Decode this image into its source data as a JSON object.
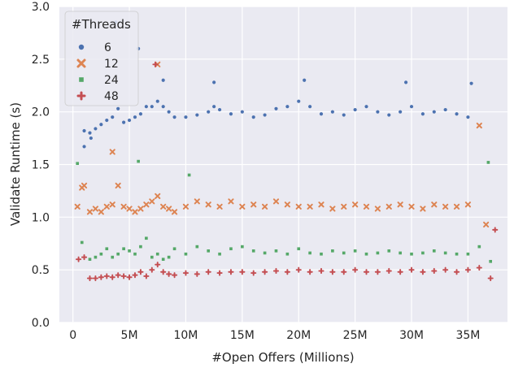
{
  "chart_data": {
    "type": "scatter",
    "xlabel": "#Open Offers (Millions)",
    "ylabel": "Validate Runtime (s)",
    "xlim": [
      -1.2,
      38.5
    ],
    "ylim": [
      0.0,
      3.0
    ],
    "x_ticks": [
      0,
      5,
      10,
      15,
      20,
      25,
      30,
      35
    ],
    "x_tick_labels": [
      "0",
      "5M",
      "10M",
      "15M",
      "20M",
      "25M",
      "30M",
      "35M"
    ],
    "y_ticks": [
      0.0,
      0.5,
      1.0,
      1.5,
      2.0,
      2.5,
      3.0
    ],
    "y_tick_labels": [
      "0.0",
      "0.5",
      "1.0",
      "1.5",
      "2.0",
      "2.5",
      "3.0"
    ],
    "grid": true,
    "legend_title": "#Threads",
    "legend_position": "top-left",
    "series": [
      {
        "name": "6",
        "marker": "circle",
        "color": "#4c72b0",
        "x": [
          1.0,
          1.5,
          2.0,
          2.5,
          3.0,
          3.5,
          4.0,
          4.5,
          5.0,
          5.5,
          6.0,
          6.5,
          7.0,
          7.5,
          8.0,
          8.5,
          9.0,
          10.0,
          11.0,
          12.0,
          12.5,
          13.0,
          14.0,
          15.0,
          16.0,
          17.0,
          18.0,
          19.0,
          20.0,
          21.0,
          22.0,
          23.0,
          24.0,
          25.0,
          26.0,
          27.0,
          28.0,
          29.0,
          30.0,
          31.0,
          32.0,
          33.0,
          34.0,
          35.0,
          3.8,
          5.8,
          8.0,
          12.5,
          20.5,
          29.5,
          35.3,
          1.0,
          1.6
        ],
        "y": [
          1.82,
          1.8,
          1.84,
          1.88,
          1.92,
          1.95,
          2.03,
          1.9,
          1.92,
          1.95,
          1.98,
          2.05,
          2.05,
          2.1,
          2.05,
          2.0,
          1.95,
          1.95,
          1.97,
          2.0,
          2.05,
          2.02,
          1.98,
          2.0,
          1.95,
          1.97,
          2.03,
          2.05,
          2.1,
          2.05,
          1.98,
          2.0,
          1.97,
          2.02,
          2.05,
          2.0,
          1.97,
          2.0,
          2.05,
          1.98,
          2.0,
          2.02,
          1.98,
          1.95,
          2.85,
          2.6,
          2.3,
          2.28,
          2.3,
          2.28,
          2.27,
          1.67,
          1.75
        ]
      },
      {
        "name": "12",
        "marker": "x",
        "color": "#dd8452",
        "x": [
          0.8,
          1.5,
          2.0,
          2.5,
          3.0,
          3.5,
          4.0,
          4.5,
          5.0,
          5.5,
          6.0,
          6.5,
          7.0,
          7.5,
          8.0,
          8.5,
          9.0,
          10.0,
          11.0,
          12.0,
          13.0,
          14.0,
          15.0,
          16.0,
          17.0,
          18.0,
          19.0,
          20.0,
          21.0,
          22.0,
          23.0,
          24.0,
          25.0,
          26.0,
          27.0,
          28.0,
          29.0,
          30.0,
          31.0,
          32.0,
          33.0,
          34.0,
          35.0,
          0.4,
          1.0,
          3.5,
          7.5,
          36.0,
          36.6
        ],
        "y": [
          1.28,
          1.05,
          1.08,
          1.05,
          1.1,
          1.12,
          1.3,
          1.1,
          1.08,
          1.05,
          1.08,
          1.12,
          1.15,
          1.2,
          1.1,
          1.08,
          1.05,
          1.1,
          1.15,
          1.12,
          1.1,
          1.15,
          1.1,
          1.12,
          1.1,
          1.15,
          1.12,
          1.1,
          1.1,
          1.12,
          1.08,
          1.1,
          1.12,
          1.1,
          1.08,
          1.1,
          1.12,
          1.1,
          1.08,
          1.12,
          1.1,
          1.1,
          1.12,
          1.1,
          1.3,
          1.62,
          2.45,
          1.87,
          0.93
        ]
      },
      {
        "name": "24",
        "marker": "square",
        "color": "#55a868",
        "x": [
          0.4,
          0.8,
          1.5,
          2.0,
          2.5,
          3.0,
          3.5,
          4.0,
          4.5,
          5.0,
          5.5,
          6.0,
          6.5,
          7.0,
          7.5,
          8.0,
          8.5,
          9.0,
          10.0,
          11.0,
          12.0,
          13.0,
          14.0,
          15.0,
          16.0,
          17.0,
          18.0,
          19.0,
          20.0,
          21.0,
          22.0,
          23.0,
          24.0,
          25.0,
          26.0,
          27.0,
          28.0,
          29.0,
          30.0,
          31.0,
          32.0,
          33.0,
          34.0,
          35.0,
          36.0,
          5.8,
          10.3,
          36.8,
          37.0
        ],
        "y": [
          1.51,
          0.76,
          0.6,
          0.62,
          0.65,
          0.7,
          0.62,
          0.65,
          0.7,
          0.68,
          0.65,
          0.72,
          0.8,
          0.62,
          0.65,
          0.6,
          0.62,
          0.7,
          0.65,
          0.72,
          0.68,
          0.65,
          0.7,
          0.72,
          0.68,
          0.66,
          0.68,
          0.65,
          0.7,
          0.66,
          0.65,
          0.68,
          0.66,
          0.68,
          0.65,
          0.66,
          0.68,
          0.66,
          0.65,
          0.66,
          0.68,
          0.66,
          0.65,
          0.65,
          0.72,
          1.53,
          1.4,
          1.52,
          0.58
        ]
      },
      {
        "name": "48",
        "marker": "plus",
        "color": "#c44e52",
        "x": [
          0.5,
          1.0,
          1.5,
          2.0,
          2.5,
          3.0,
          3.5,
          4.0,
          4.5,
          5.0,
          5.5,
          6.0,
          6.5,
          7.0,
          7.5,
          8.0,
          8.5,
          9.0,
          10.0,
          11.0,
          12.0,
          13.0,
          14.0,
          15.0,
          16.0,
          17.0,
          18.0,
          19.0,
          20.0,
          21.0,
          22.0,
          23.0,
          24.0,
          25.0,
          26.0,
          27.0,
          28.0,
          29.0,
          30.0,
          31.0,
          32.0,
          33.0,
          34.0,
          35.0,
          36.0,
          37.0,
          37.4,
          7.3
        ],
        "y": [
          0.6,
          0.62,
          0.42,
          0.42,
          0.43,
          0.44,
          0.43,
          0.45,
          0.44,
          0.43,
          0.45,
          0.48,
          0.44,
          0.5,
          0.55,
          0.48,
          0.46,
          0.45,
          0.47,
          0.46,
          0.48,
          0.47,
          0.48,
          0.48,
          0.47,
          0.48,
          0.49,
          0.48,
          0.5,
          0.48,
          0.49,
          0.48,
          0.48,
          0.5,
          0.48,
          0.48,
          0.49,
          0.48,
          0.5,
          0.48,
          0.49,
          0.5,
          0.48,
          0.5,
          0.52,
          0.42,
          0.88,
          2.45
        ]
      }
    ]
  }
}
